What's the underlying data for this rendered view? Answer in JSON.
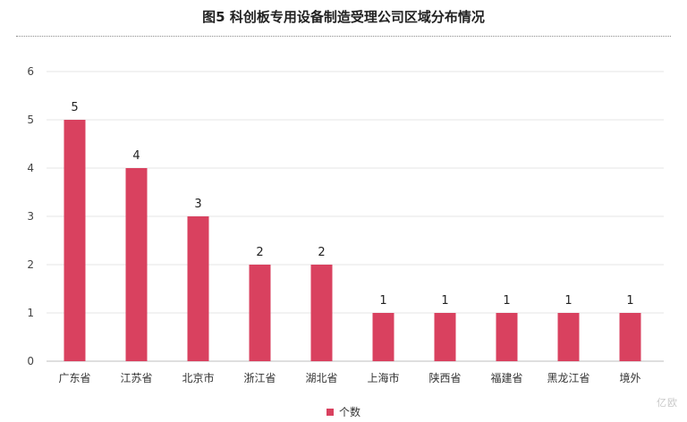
{
  "chart_data": {
    "type": "bar",
    "title": "图5  科创板专用设备制造受理公司区域分布情况",
    "categories": [
      "广东省",
      "江苏省",
      "北京市",
      "浙江省",
      "湖北省",
      "上海市",
      "陕西省",
      "福建省",
      "黑龙江省",
      "境外"
    ],
    "series": [
      {
        "name": "个数",
        "values": [
          5,
          4,
          3,
          2,
          2,
          1,
          1,
          1,
          1,
          1
        ]
      }
    ],
    "ylim": [
      0,
      6
    ],
    "yticks": [
      "0",
      "1",
      "2",
      "3",
      "4",
      "5",
      "6"
    ],
    "data_labels": [
      "5",
      "4",
      "3",
      "2",
      "2",
      "1",
      "1",
      "1",
      "1",
      "1"
    ],
    "grid": true,
    "legend_position": "bottom-center",
    "bar_color": "#d9415f"
  },
  "watermark": "亿欧"
}
